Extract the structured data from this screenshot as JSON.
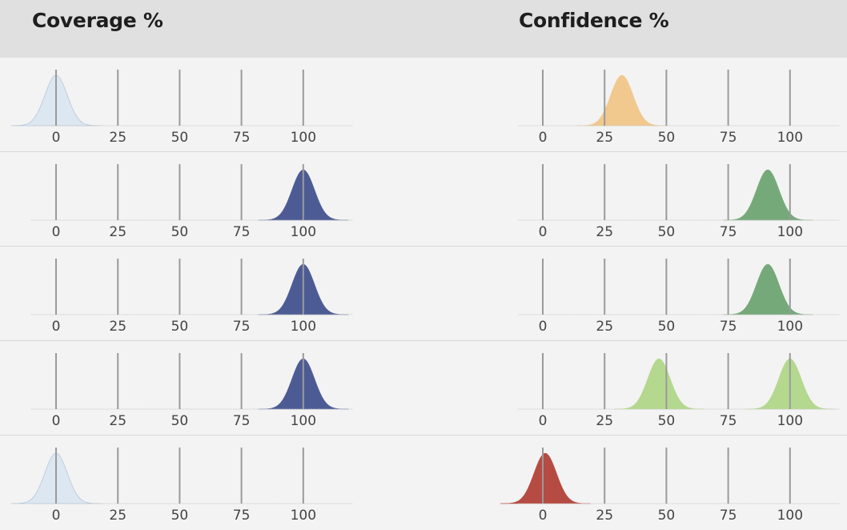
{
  "header": {
    "coverage_title": "Coverage %",
    "confidence_title": "Confidence %"
  },
  "colors": {
    "coverage_light": "#dce7f2",
    "coverage_dark": "#4d5b95",
    "confidence_orange": "#f1c88e",
    "confidence_green": "#76a97a",
    "confidence_lightgreen": "#b4d88e",
    "confidence_red": "#b54b42"
  },
  "chart_data": [
    {
      "type": "area",
      "title": "Coverage %",
      "x_ticks": [
        0,
        25,
        50,
        75,
        100
      ],
      "xlim": [
        -10,
        120
      ],
      "rows": [
        {
          "peaks": [
            {
              "mean": 0,
              "color": "#dce7f2"
            }
          ]
        },
        {
          "peaks": [
            {
              "mean": 100,
              "color": "#4d5b95"
            }
          ]
        },
        {
          "peaks": [
            {
              "mean": 100,
              "color": "#4d5b95"
            }
          ]
        },
        {
          "peaks": [
            {
              "mean": 100,
              "color": "#4d5b95"
            }
          ]
        },
        {
          "peaks": [
            {
              "mean": 0,
              "color": "#dce7f2"
            }
          ]
        }
      ]
    },
    {
      "type": "area",
      "title": "Confidence %",
      "x_ticks": [
        0,
        25,
        50,
        75,
        100
      ],
      "xlim": [
        -10,
        120
      ],
      "rows": [
        {
          "peaks": [
            {
              "mean": 32,
              "color": "#f1c88e"
            }
          ]
        },
        {
          "peaks": [
            {
              "mean": 91,
              "color": "#76a97a"
            }
          ]
        },
        {
          "peaks": [
            {
              "mean": 91,
              "color": "#76a97a"
            }
          ]
        },
        {
          "peaks": [
            {
              "mean": 47,
              "color": "#b4d88e"
            },
            {
              "mean": 100,
              "color": "#b4d88e"
            }
          ]
        },
        {
          "peaks": [
            {
              "mean": 1,
              "color": "#b54b42"
            }
          ]
        }
      ]
    }
  ]
}
